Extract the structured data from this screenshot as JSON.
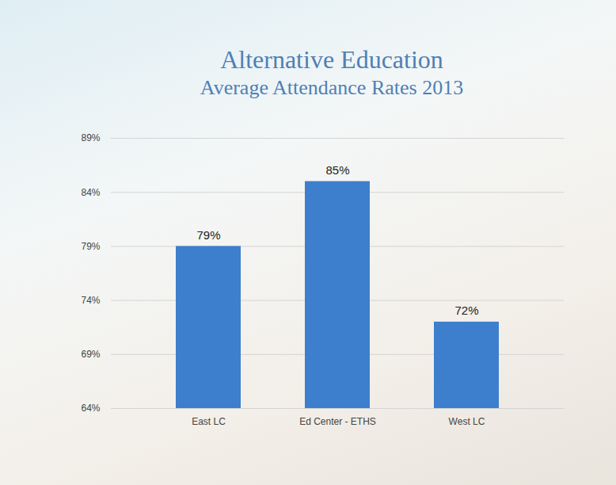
{
  "chart_data": {
    "type": "bar",
    "title": "Alternative Education",
    "subtitle": "Average Attendance Rates 2013",
    "categories": [
      "East LC",
      "Ed Center - ETHS",
      "West LC"
    ],
    "values": [
      79,
      85,
      72
    ],
    "value_labels": [
      "79%",
      "85%",
      "72%"
    ],
    "color": "#3d7fcc",
    "ylim": [
      64,
      89
    ],
    "yticks": [
      {
        "value": 64,
        "label": "64%"
      },
      {
        "value": 69,
        "label": "69%"
      },
      {
        "value": 74,
        "label": "74%"
      },
      {
        "value": 79,
        "label": "79%"
      },
      {
        "value": 84,
        "label": "84%"
      },
      {
        "value": 89,
        "label": "89%"
      }
    ],
    "grid": true,
    "data_labels": true
  }
}
